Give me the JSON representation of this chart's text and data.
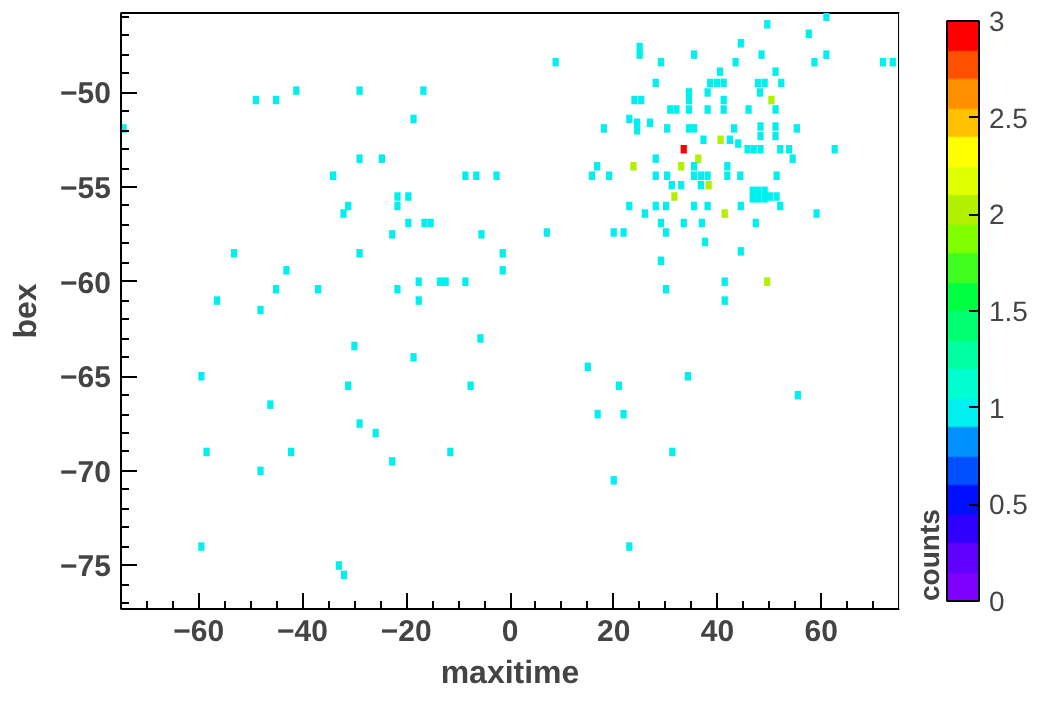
{
  "chart_data": {
    "type": "scatter",
    "xlabel": "maxitime",
    "ylabel": "bex",
    "clabel": "counts",
    "marker": "square",
    "grid": false,
    "xlim": [
      -75,
      75
    ],
    "ylim": [
      -77.3,
      -45.8
    ],
    "xticks": [
      -60,
      -40,
      -20,
      0,
      20,
      40,
      60
    ],
    "yticks": [
      -75,
      -70,
      -65,
      -60,
      -55,
      -50
    ],
    "clim": [
      0,
      3
    ],
    "cticks": [
      0,
      0.5,
      1,
      1.5,
      2,
      2.5,
      3
    ],
    "x": [
      -49,
      -45.1,
      -41.2,
      -29,
      -16.7,
      -18.6,
      -74.5,
      -29,
      -24.7,
      -34.1,
      -8.6,
      -6.5,
      -2.6,
      -21.7,
      -19.6,
      -21.7,
      -31.2,
      -32.1,
      -19.6,
      -16.5,
      -15.3,
      -22.7,
      -5.5,
      -53.2,
      -29,
      -1.4,
      -43.1,
      -1.4,
      -45.1,
      -37,
      -21.7,
      -17.6,
      -13.5,
      -12.4,
      -8.6,
      -56.5,
      -17.6,
      -48.1,
      -30,
      -5.7,
      -18.6,
      -59.5,
      -31.2,
      -7.6,
      -46.2,
      -29,
      -25.9,
      -58.5,
      -42.2,
      -11.5,
      -22.7,
      -48.1,
      -59.5,
      -33,
      -32,
      15,
      21,
      34.3,
      55.5,
      16.9,
      21.9,
      31.3,
      20,
      23,
      61,
      49.6,
      57.6,
      25,
      25,
      35.5,
      44.5,
      48.5,
      61,
      8.8,
      29.1,
      43.5,
      58.7,
      71.9,
      73.8,
      40.5,
      28.1,
      38.6,
      39.9,
      41.2,
      47.8,
      49.1,
      52.3,
      51.2,
      34.5,
      34.5,
      38.1,
      24,
      25.3,
      41.2,
      50.4,
      48.2,
      30.9,
      32.1,
      38.1,
      41.2,
      23,
      34.5,
      46,
      51.2,
      18.1,
      24.5,
      24.5,
      27,
      30.3,
      34.5,
      35.5,
      37.3,
      43.2,
      48.3,
      48.3,
      51.2,
      51.2,
      55.3,
      33.5,
      40.6,
      36.3,
      23.8,
      33,
      31.7,
      38.3,
      41.4,
      49.6,
      42.4,
      44,
      45.8,
      47,
      48.3,
      52.1,
      53.8,
      54.5,
      62.6,
      28.1,
      16.8,
      15.8,
      19.1,
      28.1,
      30.3,
      35.5,
      36.8,
      38.1,
      41.9,
      41.9,
      44.4,
      51.4,
      35.5,
      31.2,
      33,
      36.8,
      46.8,
      47.9,
      49.1,
      50.1,
      46.8,
      47.9,
      49.1,
      51.4,
      23,
      28.1,
      30.1,
      35.5,
      38.1,
      44.5,
      52.1,
      26,
      59.1,
      29.1,
      33.5,
      37,
      47.4,
      7.1,
      20,
      21.9,
      30.1,
      37.6,
      44.5,
      29.1,
      30.1,
      41.4,
      41.4
    ],
    "values": [
      -50.4,
      -50.4,
      -49.9,
      -49.9,
      -49.9,
      -51.4,
      -51.9,
      -53.5,
      -53.5,
      -54.4,
      -54.4,
      -54.4,
      -54.4,
      -55.5,
      -55.5,
      -56,
      -56,
      -56.4,
      -56.9,
      -56.9,
      -56.9,
      -57.5,
      -57.5,
      -58.5,
      -58.5,
      -58.5,
      -59.4,
      -59.4,
      -60.4,
      -60.4,
      -60.4,
      -60,
      -60,
      -60,
      -60,
      -61,
      -61,
      -61.5,
      -63.4,
      -63,
      -64,
      -65,
      -65.5,
      -65.5,
      -66.5,
      -67.5,
      -68,
      -69,
      -69,
      -69,
      -69.5,
      -70,
      -74,
      -75,
      -75.5,
      -64.5,
      -65.5,
      -65,
      -66,
      -67,
      -67,
      -69,
      -70.5,
      -74,
      -46,
      -46.4,
      -46.9,
      -47.6,
      -48,
      -48,
      -47.4,
      -48,
      -48,
      -48.4,
      -48.4,
      -48.4,
      -48.4,
      -48.4,
      -48.4,
      -48.9,
      -49.5,
      -49.5,
      -49.5,
      -49.5,
      -49.5,
      -49.5,
      -49.5,
      -48.9,
      -50,
      -50.4,
      -50,
      -50.4,
      -50.4,
      -50.4,
      -50.4,
      -50,
      -50.9,
      -50.9,
      -50.9,
      -50.9,
      -51.4,
      -50.9,
      -50.9,
      -50.9,
      -51.9,
      -51.6,
      -52,
      -51.6,
      -51.9,
      -51.9,
      -51.9,
      -52.5,
      -51.9,
      -51.8,
      -52.3,
      -51.8,
      -52.3,
      -51.9,
      -53,
      -52.5,
      -53.5,
      -53.9,
      -53.9,
      -55.5,
      -54.9,
      -56.4,
      -60,
      -52.5,
      -52.7,
      -53,
      -53,
      -53,
      -53,
      -53,
      -53.5,
      -53,
      -53.5,
      -53.9,
      -54.4,
      -54.4,
      -54.4,
      -54.4,
      -54.4,
      -54.4,
      -54.4,
      -53.9,
      -54.4,
      -54.4,
      -54.4,
      -53.9,
      -54.9,
      -54.9,
      -54.9,
      -55.2,
      -55.2,
      -55.2,
      -55.5,
      -55.6,
      -55.6,
      -55.6,
      -55.5,
      -56,
      -56,
      -56,
      -56,
      -56,
      -56,
      -56,
      -56.4,
      -56.4,
      -56.9,
      -56.9,
      -56.9,
      -56.9,
      -57.4,
      -57.4,
      -57.4,
      -57.4,
      -57.9,
      -58.4,
      -58.9,
      -60.4,
      -60,
      -61
    ],
    "cvalues": [
      1,
      1,
      1,
      1,
      1,
      1,
      1,
      1,
      1,
      1,
      1,
      1,
      1,
      1,
      1,
      1,
      1,
      1,
      1,
      1,
      1,
      1,
      1,
      1,
      1,
      1,
      1,
      1,
      1,
      1,
      1,
      1,
      1,
      1,
      1,
      1,
      1,
      1,
      1,
      1,
      1,
      1,
      1,
      1,
      1,
      1,
      1,
      1,
      1,
      1,
      1,
      1,
      1,
      1,
      1,
      1,
      1,
      1,
      1,
      1,
      1,
      1,
      1,
      1,
      1,
      1,
      1,
      1,
      1,
      1,
      1,
      1,
      1,
      1,
      1,
      1,
      1,
      1,
      1,
      1,
      1,
      1,
      1,
      1,
      1,
      1,
      1,
      1,
      1,
      1,
      1,
      1,
      1,
      1,
      2,
      1,
      1,
      1,
      1,
      1,
      1,
      1,
      1,
      1,
      1,
      1,
      1,
      1,
      1,
      1,
      1,
      1,
      1,
      1,
      1,
      1,
      1,
      1,
      3,
      2,
      2,
      2,
      2,
      2,
      2,
      2,
      2,
      1,
      1,
      1,
      1,
      1,
      1,
      1,
      1,
      1,
      1,
      1,
      1,
      1,
      1,
      1,
      1,
      1,
      1,
      1,
      1,
      1,
      1,
      1,
      1,
      1,
      1,
      1,
      1,
      1,
      1,
      1,
      1,
      1,
      1,
      1,
      1,
      1,
      1,
      1,
      1,
      1,
      1,
      1,
      1,
      1,
      1,
      1,
      1,
      1,
      1,
      1,
      1,
      1,
      1,
      1,
      1,
      1
    ]
  }
}
